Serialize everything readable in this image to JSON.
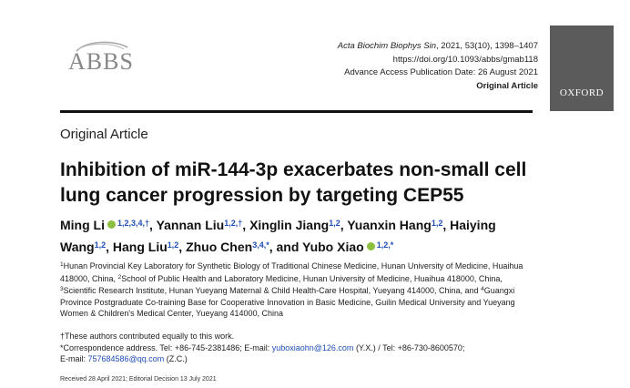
{
  "logo": {
    "text": "ABBS"
  },
  "header": {
    "journal_name": "Acta Biochim Biophys Sin",
    "journal_rest": ", 2021, 53(10), 1398–1407",
    "doi": "https://doi.org/10.1093/abbs/gmab118",
    "access": "Advance Access Publication Date: 26 August 2021",
    "type": "Original Article"
  },
  "publisher": "OXFORD",
  "section_label": "Original Article",
  "title": "Inhibition of miR-144-3p exacerbates non-small cell lung cancer progression by targeting CEP55",
  "authors": [
    {
      "name": "Ming Li",
      "orcid": true,
      "sup": "1,2,3,4,†",
      "sep": ", "
    },
    {
      "name": "Yannan Liu",
      "orcid": false,
      "sup": "1,2,†",
      "sep": ", "
    },
    {
      "name": "Xinglin Jiang",
      "orcid": false,
      "sup": "1,2",
      "sep": ", "
    },
    {
      "name": "Yuanxin Hang",
      "orcid": false,
      "sup": "1,2",
      "sep": ", "
    },
    {
      "name": "Haiying Wang",
      "orcid": false,
      "sup": "1,2",
      "sep": ", "
    },
    {
      "name": "Hang Liu",
      "orcid": false,
      "sup": "1,2",
      "sep": ", "
    },
    {
      "name": "Zhuo Chen",
      "orcid": false,
      "sup": "3,4,*",
      "sep": ", and "
    },
    {
      "name": "Yubo Xiao",
      "orcid": true,
      "sup": "1,2,*",
      "sep": ""
    }
  ],
  "affiliations": [
    {
      "sup": "1",
      "text": "Hunan Provincial Key Laboratory for Synthetic Biology of Traditional Chinese Medicine, Hunan University of Medicine, Huaihua 418000, China, "
    },
    {
      "sup": "2",
      "text": "School of Public Health and Laboratory Medicine, Hunan University of Medicine, Huaihua 418000, China, "
    },
    {
      "sup": "3",
      "text": "Scientific Research Institute, Hunan Yueyang Maternal & Child Health-Care Hospital, Yueyang 414000, China, and "
    },
    {
      "sup": "4",
      "text": "Guangxi Province Postgraduate Co-training Base for Cooperative Innovation in Basic Medicine, Guilin Medical University and Yueyang Women & Children's Medical Center, Yueyang 414000, China"
    }
  ],
  "notes": {
    "equal": "†These authors contributed equally to this work.",
    "corr_prefix": "*Correspondence address. Tel: +86-745-2381486; E-mail: ",
    "corr_email1": "yuboxiaohn@126.com",
    "corr_mid": " (Y.X.) / Tel: +86-730-8600570;",
    "corr_email_prefix": "E-mail: ",
    "corr_email2": "757684586@qq.com",
    "corr_end": " (Z.C.)"
  },
  "received": "Received 28 April 2021; Editorial Decision 13 July 2021"
}
